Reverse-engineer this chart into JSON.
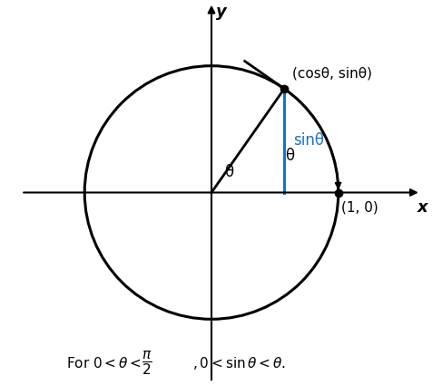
{
  "theta_deg": 55,
  "circle_color": "#000000",
  "circle_lw": 2.2,
  "axis_color": "#000000",
  "axis_lw": 1.5,
  "hyp_color": "#000000",
  "hyp_lw": 2.0,
  "vert_color": "#1a6fce",
  "vert_lw": 2.2,
  "point_color": "#000000",
  "point_size": 6,
  "label_cos_sin": "(cosθ, sinθ)",
  "label_10": "(1, 0)",
  "label_sintheta": "sinθ",
  "label_theta_origin": "θ",
  "label_theta_arc": "θ",
  "label_x": "x",
  "label_y": "y",
  "tangent_color": "#000000",
  "tangent_lw": 2.0,
  "arc_color": "#000000",
  "arc_lw": 1.5,
  "xlim": [
    -1.5,
    1.65
  ],
  "ylim": [
    -1.5,
    1.5
  ],
  "figsize": [
    4.87,
    4.25
  ],
  "dpi": 100
}
